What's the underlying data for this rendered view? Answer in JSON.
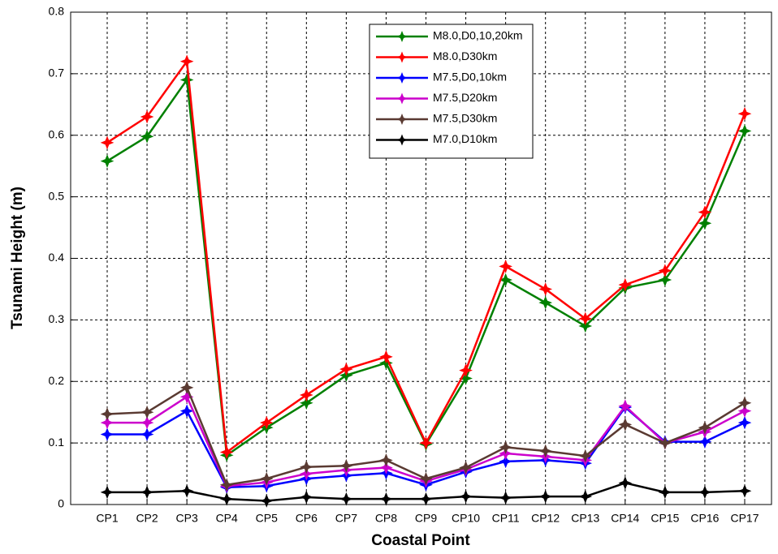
{
  "chart_data": {
    "type": "line",
    "x_label": "Coastal Point",
    "y_label": "Tsunami Height (m)",
    "categories": [
      "CP1",
      "CP2",
      "CP3",
      "CP4",
      "CP5",
      "CP6",
      "CP7",
      "CP8",
      "CP9",
      "CP10",
      "CP11",
      "CP12",
      "CP13",
      "CP14",
      "CP15",
      "CP16",
      "CP17"
    ],
    "ylim": [
      0,
      0.8
    ],
    "yticks": [
      0,
      0.1,
      0.2,
      0.3,
      0.4,
      0.5,
      0.6,
      0.7,
      0.8
    ],
    "grid": true,
    "legend": "top-center",
    "series": [
      {
        "name": "M8.0,D0,10,20km",
        "color": "#008000",
        "values": [
          0.558,
          0.598,
          0.69,
          0.08,
          0.125,
          0.165,
          0.21,
          0.23,
          0.098,
          0.205,
          0.365,
          0.328,
          0.29,
          0.352,
          0.365,
          0.457,
          0.607
        ]
      },
      {
        "name": "M8.0,D30km",
        "color": "#ff0000",
        "values": [
          0.588,
          0.63,
          0.72,
          0.085,
          0.133,
          0.178,
          0.22,
          0.24,
          0.1,
          0.218,
          0.387,
          0.35,
          0.302,
          0.357,
          0.38,
          0.475,
          0.635
        ]
      },
      {
        "name": "M7.5,D0,10km",
        "color": "#0000ff",
        "values": [
          0.114,
          0.114,
          0.152,
          0.028,
          0.03,
          0.042,
          0.047,
          0.051,
          0.032,
          0.053,
          0.07,
          0.072,
          0.067,
          0.158,
          0.102,
          0.102,
          0.133
        ]
      },
      {
        "name": "M7.5,D20km",
        "color": "#cc00cc",
        "values": [
          0.133,
          0.133,
          0.175,
          0.03,
          0.036,
          0.05,
          0.056,
          0.06,
          0.038,
          0.057,
          0.083,
          0.078,
          0.072,
          0.16,
          0.1,
          0.118,
          0.152
        ]
      },
      {
        "name": "M7.5,D30km",
        "color": "#5a3a32",
        "values": [
          0.147,
          0.15,
          0.19,
          0.032,
          0.042,
          0.061,
          0.063,
          0.072,
          0.042,
          0.06,
          0.093,
          0.087,
          0.079,
          0.13,
          0.1,
          0.125,
          0.165
        ]
      },
      {
        "name": "M7.0,D10km",
        "color": "#000000",
        "values": [
          0.02,
          0.02,
          0.022,
          0.009,
          0.006,
          0.012,
          0.009,
          0.009,
          0.009,
          0.013,
          0.011,
          0.013,
          0.013,
          0.035,
          0.02,
          0.02,
          0.022
        ]
      }
    ]
  }
}
